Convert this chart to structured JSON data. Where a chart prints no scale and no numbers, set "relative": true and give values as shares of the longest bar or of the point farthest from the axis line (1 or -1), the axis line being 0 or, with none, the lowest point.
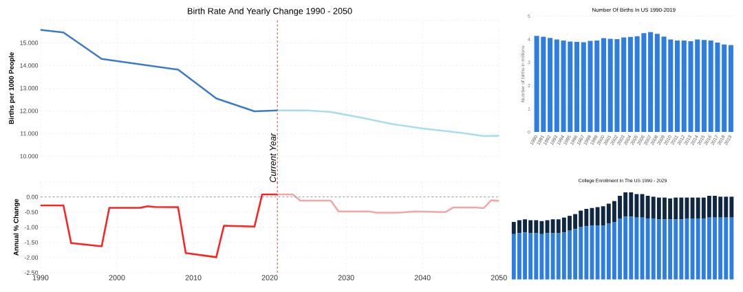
{
  "chart_data": [
    {
      "type": "line",
      "title": "Birth Rate And Yearly Change 1990 - 2050",
      "ylabel": "Births per 1000 People",
      "xlim": [
        1990,
        2050
      ],
      "ylim": [
        10,
        16
      ],
      "xticks": [
        1990,
        2000,
        2010,
        2020,
        2030,
        2040,
        2050
      ],
      "yticks": [
        {
          "value": 10,
          "label": "10.000"
        },
        {
          "value": 11,
          "label": "11.000"
        },
        {
          "value": 12,
          "label": "12.000"
        },
        {
          "value": 13,
          "label": "13.000"
        },
        {
          "value": 14,
          "label": "14.000"
        },
        {
          "value": 15,
          "label": "15.000"
        },
        {
          "value": 16,
          "label": null
        }
      ],
      "grid": true,
      "tick_labels": "y",
      "series": [
        {
          "color": "#3a7cc4",
          "x": [
            1990,
            1993,
            1998,
            2008,
            2013,
            2018,
            2021
          ],
          "values": [
            15.57,
            15.46,
            14.29,
            13.82,
            12.55,
            11.98,
            12.02
          ]
        },
        {
          "color": "#a9dcec",
          "x": [
            2021,
            2025,
            2028,
            2032,
            2036,
            2040,
            2045,
            2048,
            2050
          ],
          "values": [
            12.02,
            12.02,
            11.95,
            11.7,
            11.42,
            11.22,
            11.03,
            10.89,
            10.9
          ]
        }
      ],
      "ref_lines": [
        {
          "axis": "x",
          "value": 2021,
          "label": "Current Year",
          "color": "#c0392b",
          "line_style": "dashed"
        }
      ]
    },
    {
      "type": "line",
      "ylabel": "Annual % Change",
      "xlim": [
        1990,
        2050
      ],
      "ylim": [
        -2.5,
        0.5
      ],
      "xticks": [
        1990,
        2000,
        2010,
        2020,
        2030,
        2040,
        2050
      ],
      "yticks": [
        {
          "value": -2.5,
          "label": "-2.50"
        },
        {
          "value": -2,
          "label": "-2.00"
        },
        {
          "value": -1.5,
          "label": "-1.50"
        },
        {
          "value": -1,
          "label": "-1.00"
        },
        {
          "value": -0.5,
          "label": "-0.50"
        },
        {
          "value": 0,
          "label": "0.00"
        },
        {
          "value": 0.5,
          "label": null
        }
      ],
      "grid": true,
      "series": [
        {
          "color": "#ff2020",
          "x": [
            1990,
            1993,
            1994,
            1998,
            1999,
            2003,
            2004,
            2005,
            2008,
            2009,
            2013,
            2014,
            2018,
            2019,
            2021
          ],
          "values": [
            -0.28,
            -0.28,
            -1.52,
            -1.63,
            -0.36,
            -0.36,
            -0.31,
            -0.33,
            -0.34,
            -1.85,
            -1.99,
            -0.95,
            -0.98,
            0.08,
            0.08
          ]
        },
        {
          "color": "#f5a5a5",
          "x": [
            2021,
            2023,
            2024,
            2028,
            2029,
            2033,
            2034,
            2037,
            2039,
            2043,
            2044,
            2047,
            2048,
            2049,
            2050
          ],
          "values": [
            0.08,
            0.08,
            -0.12,
            -0.12,
            -0.48,
            -0.48,
            -0.52,
            -0.52,
            -0.48,
            -0.5,
            -0.35,
            -0.35,
            -0.37,
            -0.11,
            -0.13
          ]
        }
      ],
      "ref_lines": [
        {
          "axis": "x",
          "value": 2021,
          "color": "#c0392b",
          "line_style": "dashed"
        },
        {
          "axis": "y",
          "value": 0,
          "color": "#999999",
          "line_style": "dashed"
        }
      ]
    },
    {
      "type": "bar",
      "title": "Number Of Births In US 1990-2019",
      "ylabel": "Number of births in millions",
      "ylim": [
        0,
        5
      ],
      "yticks": [
        0,
        1,
        2,
        3,
        4,
        5
      ],
      "grid": "y",
      "color": "#2e7de0",
      "categories": [
        "1990",
        "1991",
        "1992",
        "1993",
        "1994",
        "1995",
        "1996",
        "1997",
        "1998",
        "1999",
        "2000",
        "2001",
        "2002",
        "2003",
        "2004",
        "2005",
        "2006",
        "2007",
        "2008",
        "2009",
        "2010",
        "2011",
        "2012",
        "2013",
        "2014",
        "2015",
        "2016",
        "2017",
        "2018",
        "2019"
      ],
      "values": [
        4.15,
        4.11,
        4.06,
        3.99,
        3.95,
        3.9,
        3.89,
        3.87,
        3.93,
        3.95,
        4.05,
        4.02,
        4.01,
        4.08,
        4.1,
        4.13,
        4.27,
        4.31,
        4.24,
        4.12,
        3.99,
        3.95,
        3.95,
        3.92,
        3.99,
        3.97,
        3.95,
        3.86,
        3.78,
        3.75
      ]
    },
    {
      "type": "bar",
      "title": "College Enrollment In The US 1990 - 2029",
      "stacked": true,
      "relative": true,
      "categories": [
        null,
        null,
        null,
        null,
        null,
        null,
        null,
        null,
        null,
        null,
        null,
        null,
        null,
        null,
        null,
        null,
        null,
        null,
        null,
        null,
        null,
        null,
        null,
        null,
        null,
        null,
        null,
        null,
        null,
        null,
        null,
        null,
        null,
        null,
        null,
        null,
        null,
        null,
        null,
        null
      ],
      "series": [
        {
          "color": "#2e7de0",
          "values": [
            0.52,
            0.53,
            0.54,
            0.53,
            0.53,
            0.52,
            0.53,
            0.53,
            0.53,
            0.54,
            0.56,
            0.58,
            0.6,
            0.61,
            0.62,
            0.62,
            0.62,
            0.64,
            0.66,
            0.7,
            0.72,
            0.72,
            0.71,
            0.71,
            0.7,
            0.7,
            0.69,
            0.69,
            0.69,
            0.69,
            0.69,
            0.7,
            0.7,
            0.7,
            0.7,
            0.71,
            0.71,
            0.71,
            0.71,
            0.71
          ]
        },
        {
          "color": "#0f2740",
          "values": [
            0.14,
            0.15,
            0.15,
            0.15,
            0.15,
            0.15,
            0.15,
            0.16,
            0.16,
            0.17,
            0.17,
            0.17,
            0.19,
            0.2,
            0.2,
            0.21,
            0.22,
            0.23,
            0.24,
            0.26,
            0.28,
            0.28,
            0.27,
            0.27,
            0.26,
            0.25,
            0.25,
            0.25,
            0.24,
            0.25,
            0.25,
            0.24,
            0.24,
            0.24,
            0.24,
            0.25,
            0.25,
            0.24,
            0.24,
            0.24
          ]
        }
      ]
    }
  ]
}
